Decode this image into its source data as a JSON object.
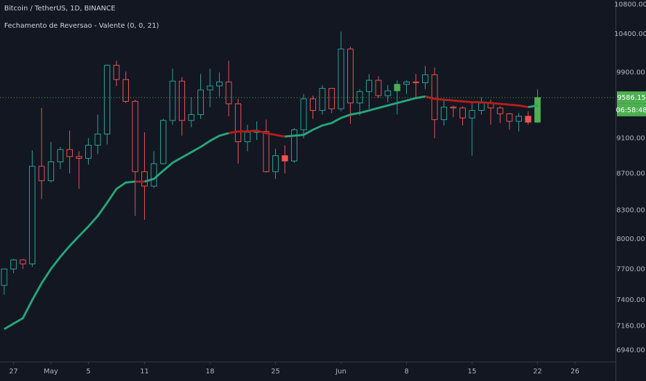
{
  "chart_data": {
    "type": "candlestick",
    "title": "Bitcoin / TetherUS, 1D, BINANCE",
    "indicator": "Fechamento de Reversao - Valente (0, 0, 21)",
    "categories": [
      null,
      "27",
      null,
      null,
      null,
      "May",
      null,
      null,
      null,
      "5",
      null,
      null,
      null,
      null,
      null,
      "11",
      null,
      null,
      null,
      null,
      null,
      null,
      "18",
      null,
      null,
      null,
      null,
      null,
      null,
      "25",
      null,
      null,
      null,
      null,
      null,
      null,
      "Jun",
      null,
      null,
      null,
      null,
      null,
      null,
      "8",
      null,
      null,
      null,
      null,
      null,
      null,
      "15",
      null,
      null,
      null,
      null,
      null,
      null,
      "22",
      null,
      null,
      null,
      "26"
    ],
    "open": [
      7540,
      7700,
      7790,
      7750,
      8780,
      8620,
      8830,
      8970,
      8890,
      8870,
      9020,
      9150,
      9990,
      9810,
      9540,
      8720,
      8560,
      8810,
      9310,
      9790,
      9310,
      9380,
      9680,
      9730,
      9780,
      9510,
      9060,
      9170,
      9180,
      8720,
      8900,
      8840,
      9200,
      9570,
      9430,
      9700,
      9450,
      10200,
      9520,
      9660,
      9800,
      9610,
      9670,
      9750,
      9780,
      9770,
      9870,
      9320,
      9470,
      9460,
      9340,
      9430,
      9520,
      9460,
      9390,
      9300,
      9360,
      9290,
      null,
      null,
      null,
      null
    ],
    "high": [
      7700,
      7800,
      7800,
      8960,
      9460,
      9060,
      9000,
      9190,
      8950,
      9100,
      9380,
      10000,
      10050,
      9910,
      9560,
      9170,
      8950,
      9330,
      9950,
      9840,
      9590,
      9880,
      9950,
      9900,
      10050,
      9570,
      9260,
      9300,
      9320,
      8980,
      9020,
      9220,
      9630,
      9610,
      9740,
      9700,
      10430,
      10230,
      9690,
      9880,
      9850,
      9740,
      9800,
      9800,
      9880,
      9980,
      9960,
      9570,
      9490,
      9480,
      9520,
      9590,
      9560,
      9480,
      9400,
      9400,
      9420,
      9690,
      null,
      null,
      null,
      null
    ],
    "low": [
      7450,
      7660,
      7700,
      7720,
      8420,
      8600,
      8750,
      8700,
      8530,
      8800,
      8920,
      9030,
      9730,
      9520,
      8240,
      8200,
      8540,
      8800,
      9260,
      9130,
      9230,
      9330,
      9470,
      9600,
      9360,
      8810,
      8950,
      9080,
      8710,
      8640,
      8700,
      8820,
      9100,
      9330,
      9380,
      9400,
      9420,
      9270,
      9370,
      9450,
      9580,
      9530,
      9380,
      9630,
      9570,
      9690,
      9100,
      9250,
      9350,
      9250,
      8900,
      9380,
      9260,
      9280,
      9200,
      9180,
      9260,
      9280,
      null,
      null,
      null,
      null
    ],
    "close": [
      7700,
      7790,
      7750,
      8780,
      8620,
      8830,
      8970,
      8890,
      8870,
      9020,
      9150,
      9990,
      9810,
      9540,
      8720,
      8560,
      8810,
      9310,
      9790,
      9310,
      9380,
      9680,
      9730,
      9780,
      9510,
      9060,
      9170,
      9180,
      8720,
      8900,
      8840,
      9200,
      9570,
      9430,
      9700,
      9450,
      10200,
      9520,
      9660,
      9800,
      9610,
      9670,
      9750,
      9780,
      9770,
      9870,
      9320,
      9470,
      9460,
      9340,
      9430,
      9520,
      9460,
      9390,
      9300,
      9360,
      9290,
      9586.15,
      null,
      null,
      null,
      null
    ],
    "ma": [
      7130,
      7180,
      7230,
      7400,
      7560,
      7700,
      7820,
      7930,
      8030,
      8130,
      8240,
      8380,
      8530,
      8600,
      8610,
      8610,
      8640,
      8730,
      8820,
      8880,
      8940,
      9000,
      9070,
      9130,
      9160,
      9180,
      9180,
      9190,
      9160,
      9140,
      9120,
      9130,
      9140,
      9200,
      9250,
      9280,
      9340,
      9380,
      9400,
      9430,
      9460,
      9490,
      9520,
      9550,
      9580,
      9600,
      9570,
      9560,
      9550,
      9540,
      9530,
      9530,
      9520,
      9510,
      9500,
      9490,
      9470,
      9490,
      null,
      null,
      null,
      null
    ],
    "signal_up": [
      42,
      57
    ],
    "signal_down": [
      30,
      56
    ],
    "price_label": "9586.15",
    "countdown": "06:58:48",
    "colors": {
      "up": "#26a69a",
      "down": "#ef5350",
      "ma_up": "#26a67a",
      "ma_down": "#b71c1c",
      "signal_up": "#4caf50",
      "signal_down": "#f05350"
    },
    "log_scale": true,
    "ylim": [
      6840,
      10860
    ],
    "yticks": [
      {
        "value": 6940,
        "label": "6940.00"
      },
      {
        "value": 7160,
        "label": "7160.00"
      },
      {
        "value": 7400,
        "label": "7400.00"
      },
      {
        "value": 7700,
        "label": "7700.00"
      },
      {
        "value": 8000,
        "label": "8000.00"
      },
      {
        "value": 8300,
        "label": "8300.00"
      },
      {
        "value": 8700,
        "label": "8700.00"
      },
      {
        "value": 9100,
        "label": "9100.00"
      },
      {
        "value": 9900,
        "label": "9900.00"
      },
      {
        "value": 10400,
        "label": "10400.00"
      },
      {
        "value": 10800,
        "label": "10800.00"
      }
    ]
  }
}
